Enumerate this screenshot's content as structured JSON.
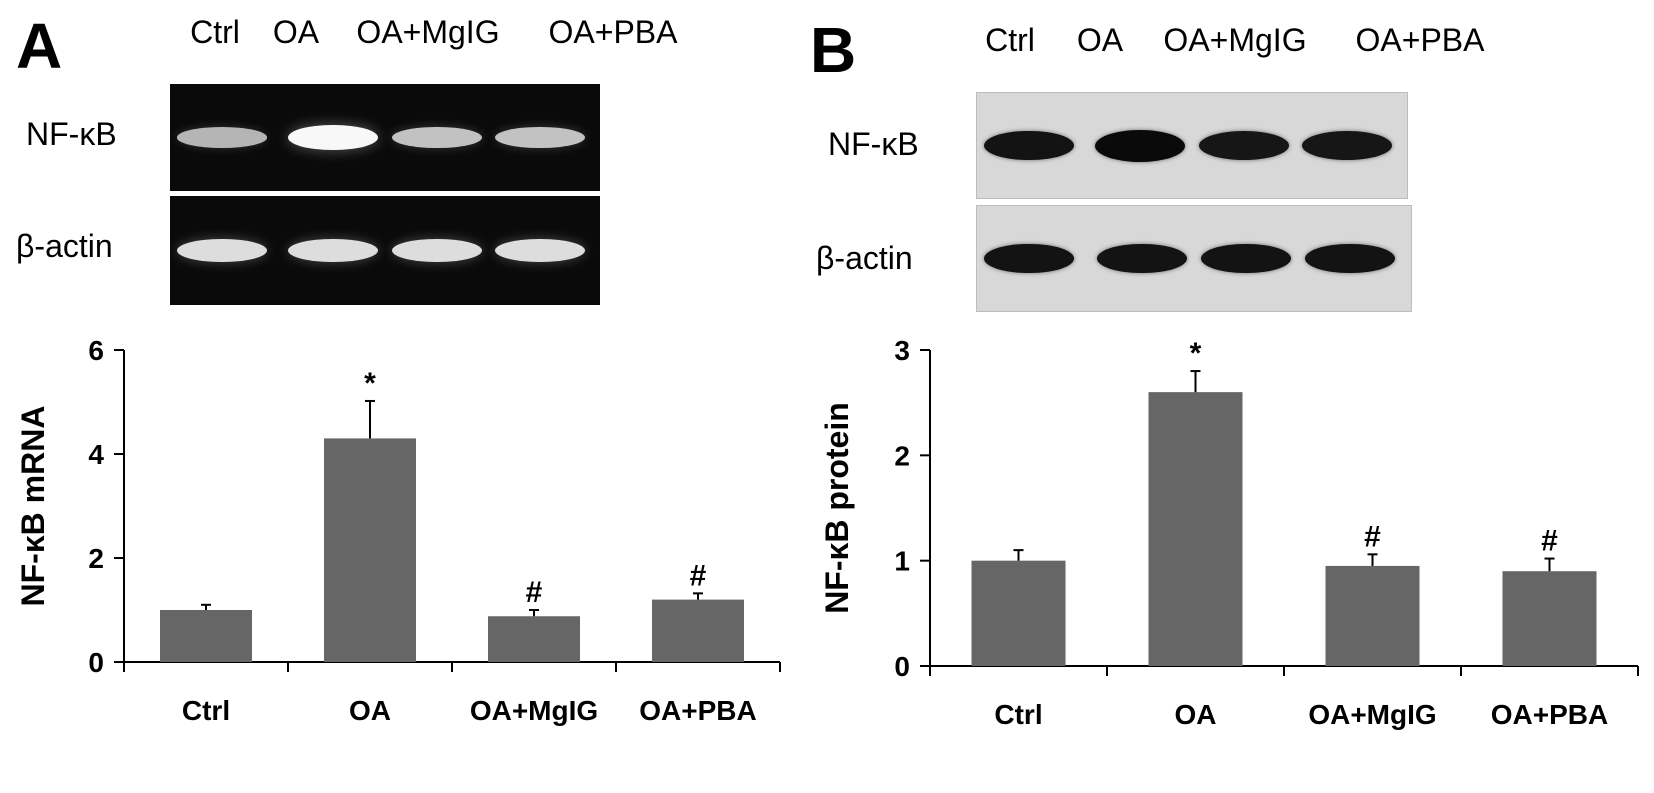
{
  "panels": [
    {
      "letter": "A",
      "lane_labels": [
        "Ctrl",
        "OA",
        "OA+MgIG",
        "OA+PBA"
      ],
      "blot_rows": [
        {
          "label": "NF-κB",
          "band_intensity": [
            0.45,
            0.95,
            0.55,
            0.55
          ]
        },
        {
          "label": "β-actin",
          "band_intensity": [
            0.75,
            0.75,
            0.75,
            0.75
          ]
        }
      ],
      "blot_style": "dark",
      "chart_data": {
        "type": "bar",
        "categories": [
          "Ctrl",
          "OA",
          "OA+MgIG",
          "OA+PBA"
        ],
        "values": [
          1.0,
          4.3,
          0.88,
          1.2
        ],
        "errors": [
          0.1,
          0.72,
          0.12,
          0.12
        ],
        "annotations": [
          "",
          "*",
          "#",
          "#"
        ],
        "ylabel": "NF-κB mRNA",
        "ylim": [
          0,
          6
        ],
        "yticks": [
          0,
          2,
          4,
          6
        ],
        "bar_color": "#666666"
      }
    },
    {
      "letter": "B",
      "lane_labels": [
        "Ctrl",
        "OA",
        "OA+MgIG",
        "OA+PBA"
      ],
      "blot_rows": [
        {
          "label": "NF-κB",
          "band_intensity": [
            0.85,
            1.0,
            0.8,
            0.8
          ]
        },
        {
          "label": "β-actin",
          "band_intensity": [
            0.85,
            0.85,
            0.85,
            0.85
          ]
        }
      ],
      "blot_style": "light",
      "chart_data": {
        "type": "bar",
        "categories": [
          "Ctrl",
          "OA",
          "OA+MgIG",
          "OA+PBA"
        ],
        "values": [
          1.0,
          2.6,
          0.95,
          0.9
        ],
        "errors": [
          0.1,
          0.2,
          0.11,
          0.12
        ],
        "annotations": [
          "",
          "*",
          "#",
          "#"
        ],
        "ylabel": "NF-κB protein",
        "ylim": [
          0,
          3
        ],
        "yticks": [
          0,
          1,
          2,
          3
        ],
        "bar_color": "#666666"
      }
    }
  ]
}
